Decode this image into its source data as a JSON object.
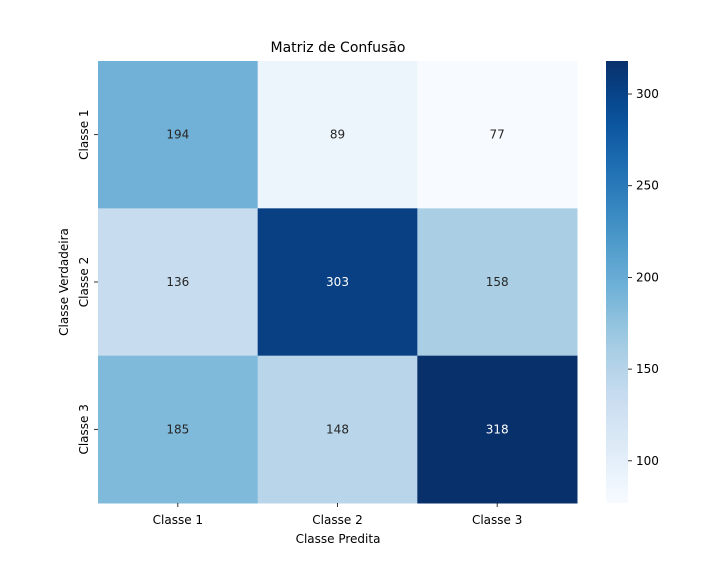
{
  "chart_data": {
    "type": "heatmap",
    "title": "Matriz de Confusão",
    "xlabel": "Classe Predita",
    "ylabel": "Classe Verdadeira",
    "x_categories": [
      "Classe 1",
      "Classe 2",
      "Classe 3"
    ],
    "y_categories": [
      "Classe 1",
      "Classe 2",
      "Classe 3"
    ],
    "values": [
      [
        194,
        89,
        77
      ],
      [
        136,
        303,
        158
      ],
      [
        185,
        148,
        318
      ]
    ],
    "colorbar": {
      "colormap": "Blues",
      "range": [
        77,
        318
      ],
      "ticks": [
        100,
        150,
        200,
        250,
        300
      ],
      "tick_labels": [
        "100",
        "150",
        "200",
        "250",
        "300"
      ]
    },
    "grid": false
  }
}
